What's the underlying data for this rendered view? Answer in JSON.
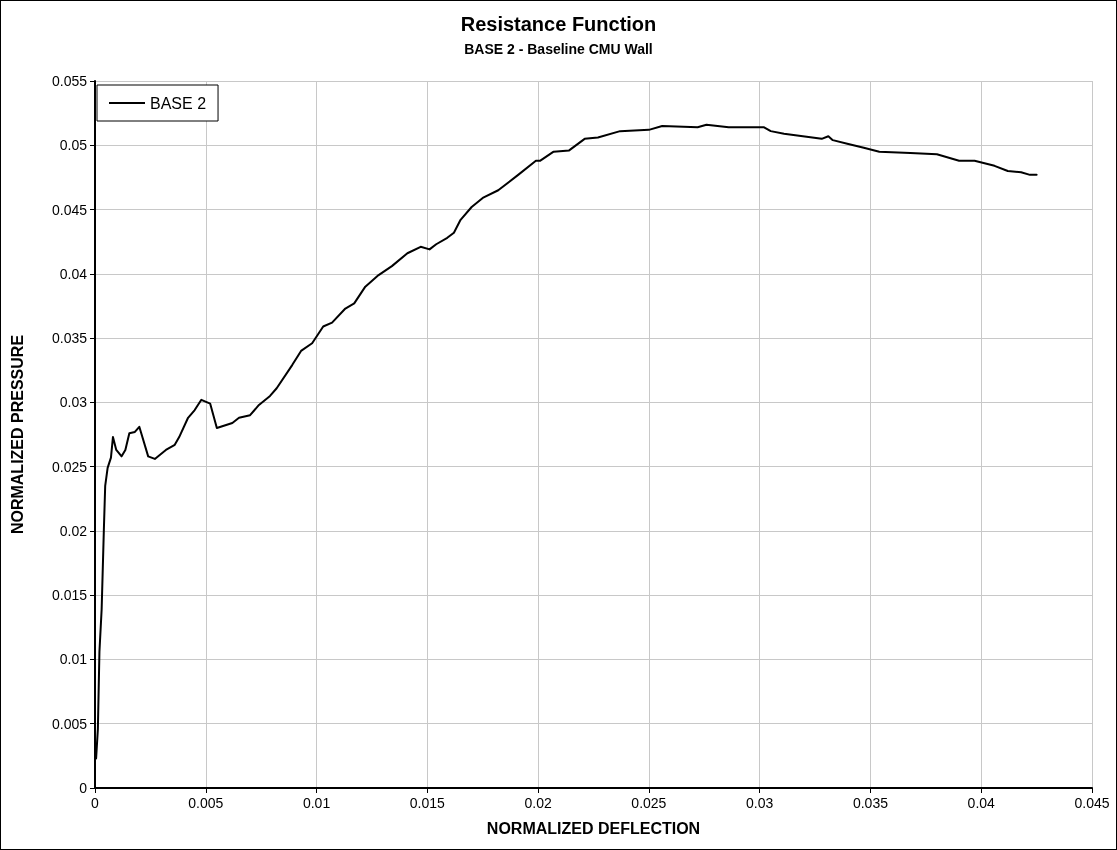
{
  "chart_data": {
    "type": "line",
    "title": "Resistance Function",
    "subtitle": "BASE 2 - Baseline CMU Wall",
    "xlabel": "NORMALIZED DEFLECTION",
    "ylabel": "NORMALIZED PRESSURE",
    "xlim": [
      0,
      0.045
    ],
    "xticks": [
      0,
      0.005,
      0.01,
      0.015,
      0.02,
      0.025,
      0.03,
      0.035,
      0.04,
      0.045
    ],
    "ylim": [
      0,
      0.055
    ],
    "yticks": [
      0,
      0.005,
      0.01,
      0.015,
      0.02,
      0.025,
      0.03,
      0.035,
      0.04,
      0.045,
      0.05,
      0.055
    ],
    "grid": true,
    "legend": "top left",
    "marker": "none",
    "line_style": "solid",
    "series": [
      {
        "name": "BASE 2",
        "color": "#000000",
        "x": [
          5e-05,
          0.00013,
          0.0002,
          0.0003,
          0.0004,
          0.00046,
          0.00057,
          0.00072,
          0.00081,
          0.00096,
          0.0012,
          0.00137,
          0.00155,
          0.0018,
          0.002,
          0.0024,
          0.0027,
          0.0032,
          0.0036,
          0.0038,
          0.0042,
          0.0045,
          0.0048,
          0.0052,
          0.0055,
          0.0062,
          0.0065,
          0.007,
          0.0074,
          0.0079,
          0.0082,
          0.0089,
          0.0093,
          0.0098,
          0.0103,
          0.0107,
          0.0113,
          0.0117,
          0.0122,
          0.0128,
          0.0134,
          0.0141,
          0.0147,
          0.0151,
          0.0154,
          0.0159,
          0.0162,
          0.0165,
          0.017,
          0.0175,
          0.0182,
          0.0191,
          0.0199,
          0.0201,
          0.0207,
          0.0214,
          0.0221,
          0.0227,
          0.0237,
          0.025,
          0.0256,
          0.0272,
          0.0276,
          0.0286,
          0.0302,
          0.0305,
          0.0311,
          0.0328,
          0.0331,
          0.0333,
          0.034,
          0.0347,
          0.0354,
          0.0368,
          0.038,
          0.039,
          0.0397,
          0.0406,
          0.0412,
          0.0418,
          0.0422,
          0.0425
        ],
        "values": [
          0.0023,
          0.0046,
          0.0106,
          0.0139,
          0.0201,
          0.0235,
          0.0249,
          0.0257,
          0.0273,
          0.0263,
          0.0258,
          0.0263,
          0.0276,
          0.0277,
          0.0281,
          0.0258,
          0.0256,
          0.0263,
          0.0267,
          0.0273,
          0.0288,
          0.0294,
          0.0302,
          0.0299,
          0.028,
          0.0284,
          0.0288,
          0.029,
          0.0298,
          0.0305,
          0.0311,
          0.0329,
          0.034,
          0.0346,
          0.0359,
          0.0362,
          0.0373,
          0.0377,
          0.039,
          0.0399,
          0.0406,
          0.0416,
          0.0421,
          0.0419,
          0.0423,
          0.0428,
          0.0432,
          0.0442,
          0.0452,
          0.0459,
          0.0465,
          0.0477,
          0.0488,
          0.0488,
          0.0495,
          0.0496,
          0.0505,
          0.0506,
          0.0511,
          0.0512,
          0.0515,
          0.0514,
          0.0516,
          0.0514,
          0.0514,
          0.0511,
          0.0509,
          0.0505,
          0.0507,
          0.0504,
          0.0501,
          0.0498,
          0.0495,
          0.0494,
          0.0493,
          0.0488,
          0.0488,
          0.0484,
          0.048,
          0.0479,
          0.0477,
          0.0477
        ]
      }
    ]
  }
}
